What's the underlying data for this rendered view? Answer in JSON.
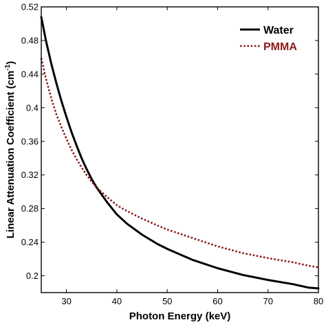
{
  "chart_data": {
    "type": "line",
    "title": "",
    "xlabel": "Photon Energy (keV)",
    "ylabel": {
      "main": "Linear Attenuation Coefficient (cm",
      "sup": "-1",
      "close": ")"
    },
    "xlim": [
      25,
      80
    ],
    "ylim": [
      0.18,
      0.52
    ],
    "xticks": [
      30,
      40,
      50,
      60,
      70,
      80
    ],
    "yticks": [
      0.2,
      0.24,
      0.28,
      0.32,
      0.36,
      0.4,
      0.44,
      0.48,
      0.52
    ],
    "grid": false,
    "legend_position": "top-right",
    "series": [
      {
        "name": "Water",
        "color": "#000000",
        "style": "solid",
        "x": [
          25,
          26,
          27,
          28,
          29,
          30,
          31,
          32,
          33,
          34,
          35,
          36,
          38,
          40,
          42,
          45,
          48,
          50,
          55,
          60,
          65,
          70,
          75,
          78,
          80
        ],
        "y": [
          0.508,
          0.478,
          0.452,
          0.429,
          0.408,
          0.389,
          0.371,
          0.355,
          0.34,
          0.327,
          0.315,
          0.305,
          0.288,
          0.273,
          0.262,
          0.249,
          0.238,
          0.232,
          0.219,
          0.209,
          0.201,
          0.195,
          0.19,
          0.186,
          0.185
        ]
      },
      {
        "name": "PMMA",
        "color": "#8b1a1a",
        "style": "dotted",
        "x": [
          25,
          26,
          27,
          28,
          29,
          30,
          31,
          32,
          33,
          34,
          35,
          36,
          38,
          40,
          42,
          45,
          48,
          50,
          55,
          60,
          65,
          70,
          75,
          78,
          80
        ],
        "y": [
          0.459,
          0.433,
          0.411,
          0.392,
          0.377,
          0.363,
          0.35,
          0.339,
          0.329,
          0.32,
          0.312,
          0.305,
          0.294,
          0.284,
          0.277,
          0.268,
          0.26,
          0.255,
          0.245,
          0.235,
          0.227,
          0.221,
          0.216,
          0.212,
          0.21
        ]
      }
    ]
  }
}
